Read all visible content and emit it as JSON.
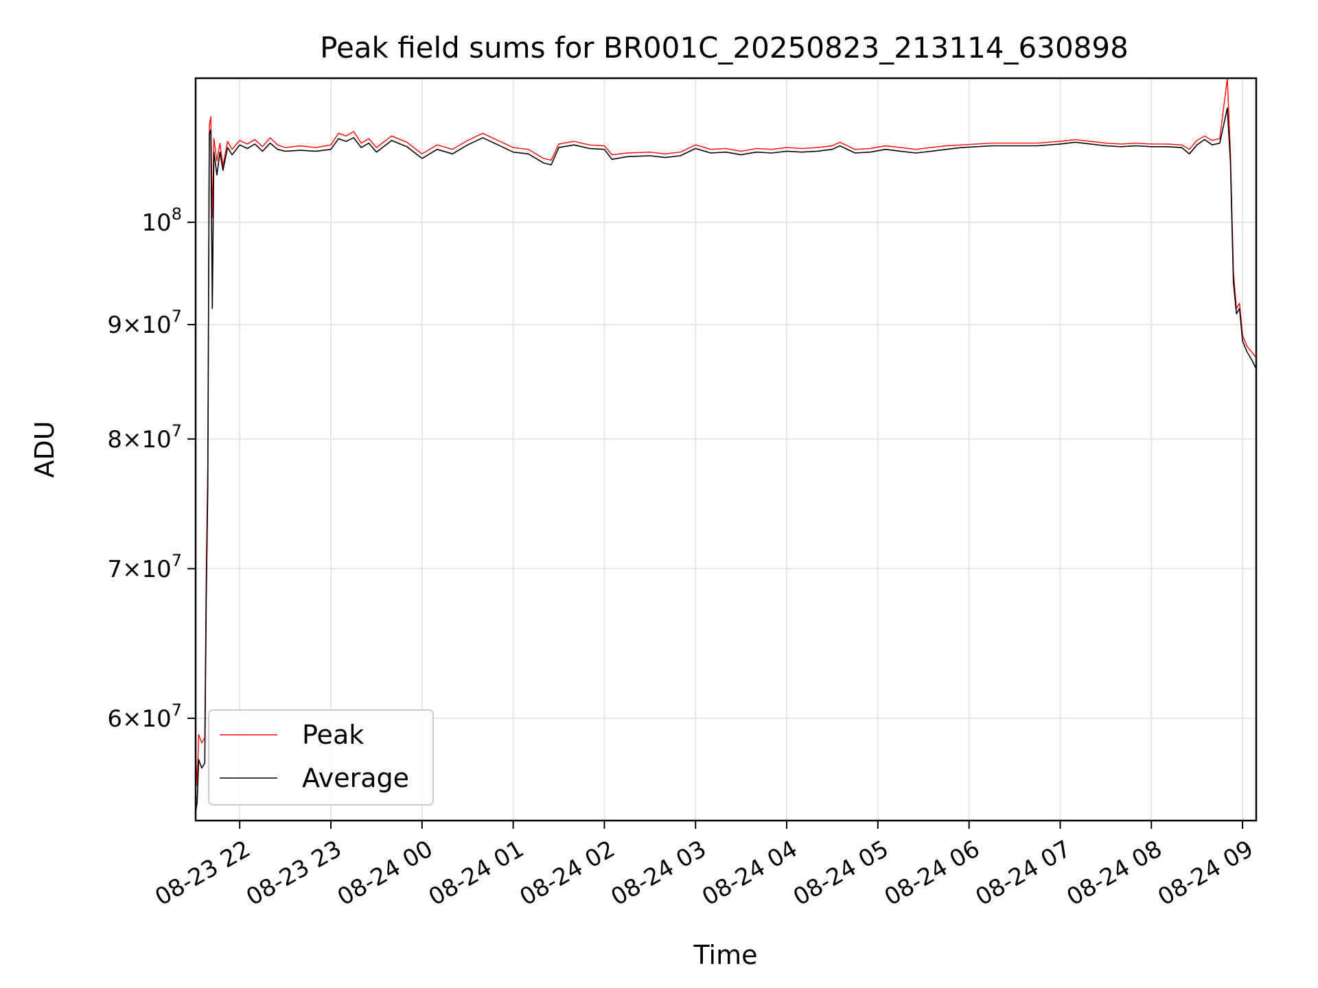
{
  "chart_data": {
    "type": "line",
    "title": "Peak field sums for BR001C_20250823_213114_630898",
    "xlabel": "Time",
    "ylabel": "ADU",
    "y_scale": "log",
    "grid": true,
    "legend_position": "lower-left",
    "xlim": [
      "2025-08-23 21:31",
      "2025-08-24 09:09"
    ],
    "ylim": [
      54000000,
      116000000
    ],
    "x_ticks": [
      {
        "t": "2025-08-23 22:00",
        "label": "08-23 22"
      },
      {
        "t": "2025-08-23 23:00",
        "label": "08-23 23"
      },
      {
        "t": "2025-08-24 00:00",
        "label": "08-24 00"
      },
      {
        "t": "2025-08-24 01:00",
        "label": "08-24 01"
      },
      {
        "t": "2025-08-24 02:00",
        "label": "08-24 02"
      },
      {
        "t": "2025-08-24 03:00",
        "label": "08-24 03"
      },
      {
        "t": "2025-08-24 04:00",
        "label": "08-24 04"
      },
      {
        "t": "2025-08-24 05:00",
        "label": "08-24 05"
      },
      {
        "t": "2025-08-24 06:00",
        "label": "08-24 06"
      },
      {
        "t": "2025-08-24 07:00",
        "label": "08-24 07"
      },
      {
        "t": "2025-08-24 08:00",
        "label": "08-24 08"
      },
      {
        "t": "2025-08-24 09:00",
        "label": "08-24 09"
      }
    ],
    "y_ticks": [
      {
        "value": 60000000,
        "mantissa": "6",
        "base": "10",
        "exp": "7"
      },
      {
        "value": 70000000,
        "mantissa": "7",
        "base": "10",
        "exp": "7"
      },
      {
        "value": 80000000,
        "mantissa": "8",
        "base": "10",
        "exp": "7"
      },
      {
        "value": 90000000,
        "mantissa": "9",
        "base": "10",
        "exp": "7"
      },
      {
        "value": 100000000,
        "mantissa": "",
        "base": "10",
        "exp": "8"
      }
    ],
    "series": [
      {
        "name": "Peak",
        "color": "#ff0000",
        "points": [
          [
            "2025-08-23 21:31",
            58000000
          ],
          [
            "2025-08-23 21:32",
            56000000
          ],
          [
            "2025-08-23 21:33",
            59000000
          ],
          [
            "2025-08-23 21:35",
            58500000
          ],
          [
            "2025-08-23 21:37",
            58800000
          ],
          [
            "2025-08-23 21:38",
            70000000
          ],
          [
            "2025-08-23 21:39",
            78000000
          ],
          [
            "2025-08-23 21:40",
            110500000
          ],
          [
            "2025-08-23 21:41",
            111500000
          ],
          [
            "2025-08-23 21:42",
            100500000
          ],
          [
            "2025-08-23 21:43",
            109000000
          ],
          [
            "2025-08-23 21:45",
            106500000
          ],
          [
            "2025-08-23 21:47",
            108500000
          ],
          [
            "2025-08-23 21:49",
            106000000
          ],
          [
            "2025-08-23 21:52",
            108700000
          ],
          [
            "2025-08-23 21:55",
            107800000
          ],
          [
            "2025-08-23 22:00",
            108800000
          ],
          [
            "2025-08-23 22:05",
            108400000
          ],
          [
            "2025-08-23 22:10",
            108900000
          ],
          [
            "2025-08-23 22:15",
            108100000
          ],
          [
            "2025-08-23 22:20",
            109100000
          ],
          [
            "2025-08-23 22:25",
            108300000
          ],
          [
            "2025-08-23 22:30",
            108000000
          ],
          [
            "2025-08-23 22:40",
            108200000
          ],
          [
            "2025-08-23 22:50",
            108000000
          ],
          [
            "2025-08-23 23:00",
            108300000
          ],
          [
            "2025-08-23 23:05",
            109600000
          ],
          [
            "2025-08-23 23:10",
            109300000
          ],
          [
            "2025-08-23 23:15",
            109800000
          ],
          [
            "2025-08-23 23:20",
            108500000
          ],
          [
            "2025-08-23 23:25",
            109000000
          ],
          [
            "2025-08-23 23:30",
            108000000
          ],
          [
            "2025-08-23 23:40",
            109300000
          ],
          [
            "2025-08-23 23:50",
            108600000
          ],
          [
            "2025-08-24 00:00",
            107300000
          ],
          [
            "2025-08-24 00:10",
            108300000
          ],
          [
            "2025-08-24 00:20",
            107800000
          ],
          [
            "2025-08-24 00:30",
            108800000
          ],
          [
            "2025-08-24 00:40",
            109600000
          ],
          [
            "2025-08-24 00:50",
            108800000
          ],
          [
            "2025-08-24 01:00",
            108000000
          ],
          [
            "2025-08-24 01:10",
            107800000
          ],
          [
            "2025-08-24 01:15",
            107300000
          ],
          [
            "2025-08-24 01:20",
            106800000
          ],
          [
            "2025-08-24 01:25",
            106600000
          ],
          [
            "2025-08-24 01:30",
            108400000
          ],
          [
            "2025-08-24 01:40",
            108700000
          ],
          [
            "2025-08-24 01:50",
            108300000
          ],
          [
            "2025-08-24 02:00",
            108200000
          ],
          [
            "2025-08-24 02:05",
            107200000
          ],
          [
            "2025-08-24 02:15",
            107400000
          ],
          [
            "2025-08-24 02:30",
            107500000
          ],
          [
            "2025-08-24 02:40",
            107300000
          ],
          [
            "2025-08-24 02:50",
            107500000
          ],
          [
            "2025-08-24 03:00",
            108300000
          ],
          [
            "2025-08-24 03:10",
            107800000
          ],
          [
            "2025-08-24 03:20",
            107900000
          ],
          [
            "2025-08-24 03:30",
            107600000
          ],
          [
            "2025-08-24 03:40",
            107900000
          ],
          [
            "2025-08-24 03:50",
            107800000
          ],
          [
            "2025-08-24 04:00",
            108000000
          ],
          [
            "2025-08-24 04:10",
            107900000
          ],
          [
            "2025-08-24 04:20",
            108000000
          ],
          [
            "2025-08-24 04:30",
            108200000
          ],
          [
            "2025-08-24 04:35",
            108600000
          ],
          [
            "2025-08-24 04:45",
            107800000
          ],
          [
            "2025-08-24 04:55",
            107900000
          ],
          [
            "2025-08-24 05:05",
            108200000
          ],
          [
            "2025-08-24 05:15",
            108000000
          ],
          [
            "2025-08-24 05:25",
            107800000
          ],
          [
            "2025-08-24 05:35",
            108000000
          ],
          [
            "2025-08-24 05:45",
            108200000
          ],
          [
            "2025-08-24 05:55",
            108300000
          ],
          [
            "2025-08-24 06:05",
            108400000
          ],
          [
            "2025-08-24 06:15",
            108500000
          ],
          [
            "2025-08-24 06:30",
            108500000
          ],
          [
            "2025-08-24 06:45",
            108500000
          ],
          [
            "2025-08-24 07:00",
            108700000
          ],
          [
            "2025-08-24 07:10",
            108900000
          ],
          [
            "2025-08-24 07:20",
            108700000
          ],
          [
            "2025-08-24 07:30",
            108500000
          ],
          [
            "2025-08-24 07:40",
            108400000
          ],
          [
            "2025-08-24 07:50",
            108500000
          ],
          [
            "2025-08-24 08:00",
            108400000
          ],
          [
            "2025-08-24 08:10",
            108400000
          ],
          [
            "2025-08-24 08:20",
            108300000
          ],
          [
            "2025-08-24 08:25",
            107800000
          ],
          [
            "2025-08-24 08:30",
            108800000
          ],
          [
            "2025-08-24 08:35",
            109300000
          ],
          [
            "2025-08-24 08:40",
            108800000
          ],
          [
            "2025-08-24 08:45",
            109000000
          ],
          [
            "2025-08-24 08:50",
            116000000
          ],
          [
            "2025-08-24 08:52",
            107500000
          ],
          [
            "2025-08-24 08:54",
            95000000
          ],
          [
            "2025-08-24 08:56",
            91500000
          ],
          [
            "2025-08-24 08:58",
            92000000
          ],
          [
            "2025-08-24 09:00",
            89000000
          ],
          [
            "2025-08-24 09:03",
            88000000
          ],
          [
            "2025-08-24 09:06",
            87500000
          ],
          [
            "2025-08-24 09:09",
            87000000
          ]
        ]
      },
      {
        "name": "Average",
        "color": "#000000",
        "points": [
          [
            "2025-08-23 21:31",
            54500000
          ],
          [
            "2025-08-23 21:32",
            55000000
          ],
          [
            "2025-08-23 21:33",
            57500000
          ],
          [
            "2025-08-23 21:35",
            57000000
          ],
          [
            "2025-08-23 21:37",
            57300000
          ],
          [
            "2025-08-23 21:38",
            68000000
          ],
          [
            "2025-08-23 21:39",
            76000000
          ],
          [
            "2025-08-23 21:40",
            109500000
          ],
          [
            "2025-08-23 21:41",
            110000000
          ],
          [
            "2025-08-23 21:42",
            91500000
          ],
          [
            "2025-08-23 21:43",
            107500000
          ],
          [
            "2025-08-23 21:45",
            105000000
          ],
          [
            "2025-08-23 21:47",
            107500000
          ],
          [
            "2025-08-23 21:49",
            105500000
          ],
          [
            "2025-08-23 21:52",
            108000000
          ],
          [
            "2025-08-23 21:55",
            107200000
          ],
          [
            "2025-08-23 22:00",
            108300000
          ],
          [
            "2025-08-23 22:05",
            107900000
          ],
          [
            "2025-08-23 22:10",
            108400000
          ],
          [
            "2025-08-23 22:15",
            107600000
          ],
          [
            "2025-08-23 22:20",
            108500000
          ],
          [
            "2025-08-23 22:25",
            107800000
          ],
          [
            "2025-08-23 22:30",
            107600000
          ],
          [
            "2025-08-23 22:40",
            107700000
          ],
          [
            "2025-08-23 22:50",
            107600000
          ],
          [
            "2025-08-23 23:00",
            107800000
          ],
          [
            "2025-08-23 23:05",
            109000000
          ],
          [
            "2025-08-23 23:10",
            108700000
          ],
          [
            "2025-08-23 23:15",
            109100000
          ],
          [
            "2025-08-23 23:20",
            108000000
          ],
          [
            "2025-08-23 23:25",
            108500000
          ],
          [
            "2025-08-23 23:30",
            107500000
          ],
          [
            "2025-08-23 23:40",
            108800000
          ],
          [
            "2025-08-23 23:50",
            108100000
          ],
          [
            "2025-08-24 00:00",
            106800000
          ],
          [
            "2025-08-24 00:10",
            107800000
          ],
          [
            "2025-08-24 00:20",
            107300000
          ],
          [
            "2025-08-24 00:30",
            108300000
          ],
          [
            "2025-08-24 00:40",
            109100000
          ],
          [
            "2025-08-24 00:50",
            108300000
          ],
          [
            "2025-08-24 01:00",
            107500000
          ],
          [
            "2025-08-24 01:10",
            107300000
          ],
          [
            "2025-08-24 01:15",
            106800000
          ],
          [
            "2025-08-24 01:20",
            106300000
          ],
          [
            "2025-08-24 01:25",
            106100000
          ],
          [
            "2025-08-24 01:30",
            108000000
          ],
          [
            "2025-08-24 01:40",
            108300000
          ],
          [
            "2025-08-24 01:50",
            107900000
          ],
          [
            "2025-08-24 02:00",
            107800000
          ],
          [
            "2025-08-24 02:05",
            106700000
          ],
          [
            "2025-08-24 02:15",
            107000000
          ],
          [
            "2025-08-24 02:30",
            107100000
          ],
          [
            "2025-08-24 02:40",
            106900000
          ],
          [
            "2025-08-24 02:50",
            107100000
          ],
          [
            "2025-08-24 03:00",
            107900000
          ],
          [
            "2025-08-24 03:10",
            107400000
          ],
          [
            "2025-08-24 03:20",
            107500000
          ],
          [
            "2025-08-24 03:30",
            107200000
          ],
          [
            "2025-08-24 03:40",
            107500000
          ],
          [
            "2025-08-24 03:50",
            107400000
          ],
          [
            "2025-08-24 04:00",
            107600000
          ],
          [
            "2025-08-24 04:10",
            107500000
          ],
          [
            "2025-08-24 04:20",
            107600000
          ],
          [
            "2025-08-24 04:30",
            107800000
          ],
          [
            "2025-08-24 04:35",
            108200000
          ],
          [
            "2025-08-24 04:45",
            107400000
          ],
          [
            "2025-08-24 04:55",
            107500000
          ],
          [
            "2025-08-24 05:05",
            107800000
          ],
          [
            "2025-08-24 05:15",
            107600000
          ],
          [
            "2025-08-24 05:25",
            107400000
          ],
          [
            "2025-08-24 05:35",
            107600000
          ],
          [
            "2025-08-24 05:45",
            107800000
          ],
          [
            "2025-08-24 05:55",
            108000000
          ],
          [
            "2025-08-24 06:05",
            108100000
          ],
          [
            "2025-08-24 06:15",
            108200000
          ],
          [
            "2025-08-24 06:30",
            108200000
          ],
          [
            "2025-08-24 06:45",
            108200000
          ],
          [
            "2025-08-24 07:00",
            108400000
          ],
          [
            "2025-08-24 07:10",
            108600000
          ],
          [
            "2025-08-24 07:20",
            108400000
          ],
          [
            "2025-08-24 07:30",
            108200000
          ],
          [
            "2025-08-24 07:40",
            108100000
          ],
          [
            "2025-08-24 07:50",
            108200000
          ],
          [
            "2025-08-24 08:00",
            108100000
          ],
          [
            "2025-08-24 08:10",
            108100000
          ],
          [
            "2025-08-24 08:20",
            108000000
          ],
          [
            "2025-08-24 08:25",
            107300000
          ],
          [
            "2025-08-24 08:30",
            108300000
          ],
          [
            "2025-08-24 08:35",
            108900000
          ],
          [
            "2025-08-24 08:40",
            108300000
          ],
          [
            "2025-08-24 08:45",
            108500000
          ],
          [
            "2025-08-24 08:50",
            112500000
          ],
          [
            "2025-08-24 08:52",
            106500000
          ],
          [
            "2025-08-24 08:54",
            94000000
          ],
          [
            "2025-08-24 08:56",
            91000000
          ],
          [
            "2025-08-24 08:58",
            91500000
          ],
          [
            "2025-08-24 09:00",
            88500000
          ],
          [
            "2025-08-24 09:03",
            87500000
          ],
          [
            "2025-08-24 09:06",
            86800000
          ],
          [
            "2025-08-24 09:09",
            86000000
          ]
        ]
      }
    ]
  }
}
